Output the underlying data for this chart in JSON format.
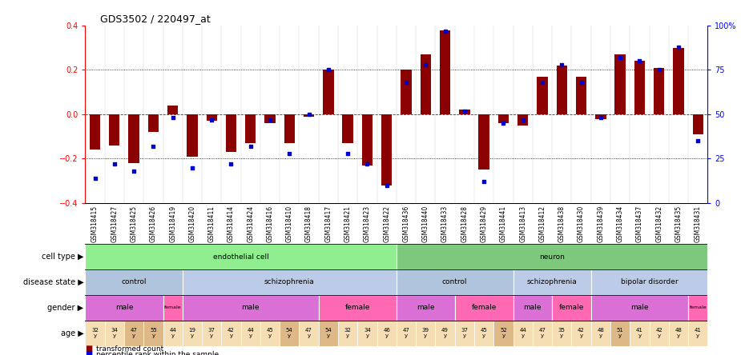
{
  "title": "GDS3502 / 220497_at",
  "samples": [
    "GSM318415",
    "GSM318427",
    "GSM318425",
    "GSM318426",
    "GSM318419",
    "GSM318420",
    "GSM318411",
    "GSM318414",
    "GSM318424",
    "GSM318416",
    "GSM318410",
    "GSM318418",
    "GSM318417",
    "GSM318421",
    "GSM318423",
    "GSM318422",
    "GSM318436",
    "GSM318440",
    "GSM318433",
    "GSM318428",
    "GSM318429",
    "GSM318441",
    "GSM318413",
    "GSM318412",
    "GSM318438",
    "GSM318430",
    "GSM318439",
    "GSM318434",
    "GSM318437",
    "GSM318432",
    "GSM318435",
    "GSM318431"
  ],
  "bar_values": [
    -0.16,
    -0.14,
    -0.22,
    -0.08,
    0.04,
    -0.19,
    -0.03,
    -0.17,
    -0.13,
    -0.04,
    -0.13,
    -0.01,
    0.2,
    -0.13,
    -0.23,
    -0.32,
    0.2,
    0.27,
    0.38,
    0.02,
    -0.25,
    -0.04,
    -0.05,
    0.17,
    0.22,
    0.17,
    -0.02,
    0.27,
    0.24,
    0.21,
    0.3,
    -0.09
  ],
  "dot_values": [
    14,
    22,
    18,
    32,
    48,
    20,
    47,
    22,
    32,
    47,
    28,
    50,
    75,
    28,
    22,
    10,
    68,
    78,
    97,
    52,
    12,
    45,
    47,
    68,
    78,
    68,
    48,
    82,
    80,
    75,
    88,
    35
  ],
  "ylim_left": [
    -0.4,
    0.4
  ],
  "ylim_right": [
    0,
    100
  ],
  "yticks_left": [
    -0.4,
    -0.2,
    0.0,
    0.2,
    0.4
  ],
  "yticks_right": [
    0,
    25,
    50,
    75,
    100
  ],
  "cell_type_groups": [
    {
      "label": "endothelial cell",
      "start": 0,
      "end": 16,
      "color": "#90EE90"
    },
    {
      "label": "neuron",
      "start": 16,
      "end": 32,
      "color": "#90EE90"
    }
  ],
  "disease_state_groups": [
    {
      "label": "control",
      "start": 0,
      "end": 5,
      "color": "#B0C4DE"
    },
    {
      "label": "schizophrenia",
      "start": 5,
      "end": 16,
      "color": "#ADD8E6"
    },
    {
      "label": "control",
      "start": 16,
      "end": 22,
      "color": "#B0C4DE"
    },
    {
      "label": "schizophrenia",
      "start": 22,
      "end": 26,
      "color": "#ADD8E6"
    },
    {
      "label": "bipolar disorder",
      "start": 26,
      "end": 32,
      "color": "#ADD8E6"
    }
  ],
  "gender_groups": [
    {
      "label": "male",
      "start": 0,
      "end": 4,
      "color": "#DA70D6"
    },
    {
      "label": "female",
      "start": 4,
      "end": 5,
      "color": "#FF69B4"
    },
    {
      "label": "male",
      "start": 5,
      "end": 12,
      "color": "#DA70D6"
    },
    {
      "label": "female",
      "start": 12,
      "end": 16,
      "color": "#FF69B4"
    },
    {
      "label": "male",
      "start": 16,
      "end": 19,
      "color": "#DA70D6"
    },
    {
      "label": "female",
      "start": 19,
      "end": 22,
      "color": "#FF69B4"
    },
    {
      "label": "male",
      "start": 22,
      "end": 24,
      "color": "#DA70D6"
    },
    {
      "label": "female",
      "start": 24,
      "end": 26,
      "color": "#FF69B4"
    },
    {
      "label": "male",
      "start": 26,
      "end": 31,
      "color": "#DA70D6"
    },
    {
      "label": "female",
      "start": 31,
      "end": 32,
      "color": "#FF69B4"
    }
  ],
  "age_data": [
    "32 y",
    "34 y",
    "47 y",
    "55 y",
    "44 y",
    "19 y",
    "37 y",
    "42 y",
    "44 y",
    "45 y",
    "54 y",
    "47 y",
    "54 y",
    "32 y",
    "34 y",
    "46 y",
    "47 y",
    "39 y",
    "49 y",
    "37 y",
    "45 y",
    "52 y",
    "44 y",
    "47 y",
    "35 y",
    "42 y",
    "48 y",
    "51 y",
    "41 y",
    "42 y",
    "48 y",
    "41 y"
  ],
  "age_colors": [
    "#F5DEB3",
    "#F5DEB3",
    "#DEB887",
    "#DEB887",
    "#F5DEB3",
    "#F5DEB3",
    "#F5DEB3",
    "#F5DEB3",
    "#F5DEB3",
    "#F5DEB3",
    "#DEB887",
    "#F5DEB3",
    "#DEB887",
    "#F5DEB3",
    "#F5DEB3",
    "#F5DEB3",
    "#F5DEB3",
    "#F5DEB3",
    "#F5DEB3",
    "#F5DEB3",
    "#F5DEB3",
    "#DEB887",
    "#F5DEB3",
    "#F5DEB3",
    "#F5DEB3",
    "#F5DEB3",
    "#F5DEB3",
    "#DEB887",
    "#F5DEB3",
    "#F5DEB3",
    "#F5DEB3",
    "#F5DEB3"
  ],
  "bar_color": "#8B0000",
  "dot_color": "#0000CD",
  "background_color": "#ffffff",
  "zero_line_color": "#cc0000",
  "row_label_fontsize": 7,
  "tick_fontsize": 5.5,
  "annot_fontsize": 6.5,
  "age_fontsize": 5.0
}
